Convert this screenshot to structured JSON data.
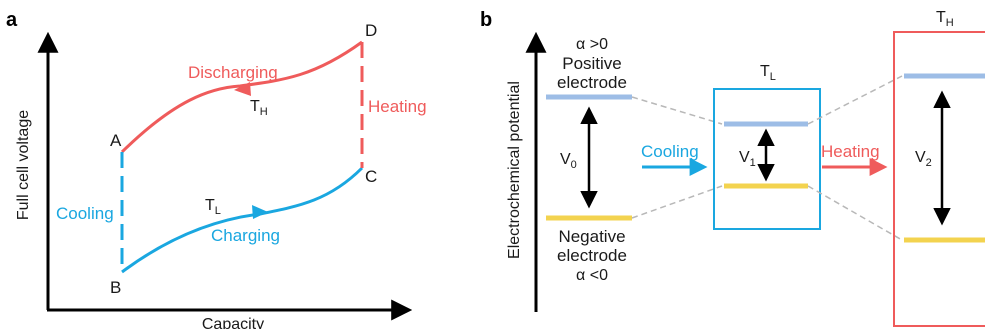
{
  "colors": {
    "red": "#ef5b5b",
    "blue": "#1aa7e0",
    "light_blue": "#9dbde6",
    "yellow": "#f3d34f",
    "black": "#000000",
    "dash_gray": "#b8b8b8"
  },
  "panel_a": {
    "panel_label": "a",
    "y_axis_label": "Full cell voltage",
    "x_axis_label": "Capacity",
    "point_a": "A",
    "point_b": "B",
    "point_c": "C",
    "point_d": "D",
    "discharging_label": "Discharging",
    "charging_label": "Charging",
    "cooling_label": "Cooling",
    "heating_label": "Heating",
    "th_main": "T",
    "th_sub": "H",
    "tl_main": "T",
    "tl_sub": "L"
  },
  "panel_b": {
    "panel_label": "b",
    "y_axis_label": "Electrochemical potential",
    "alpha_pos": "α >0",
    "positive_line1": "Positive",
    "positive_line2": "electrode",
    "negative_line1": "Negative",
    "negative_line2": "electrode",
    "alpha_neg": "α <0",
    "v0_main": "V",
    "v0_sub": "0",
    "v1_main": "V",
    "v1_sub": "1",
    "v2_main": "V",
    "v2_sub": "2",
    "cooling_label": "Cooling",
    "heating_label": "Heating",
    "tl_main": "T",
    "tl_sub": "L",
    "th_main": "T",
    "th_sub": "H"
  }
}
